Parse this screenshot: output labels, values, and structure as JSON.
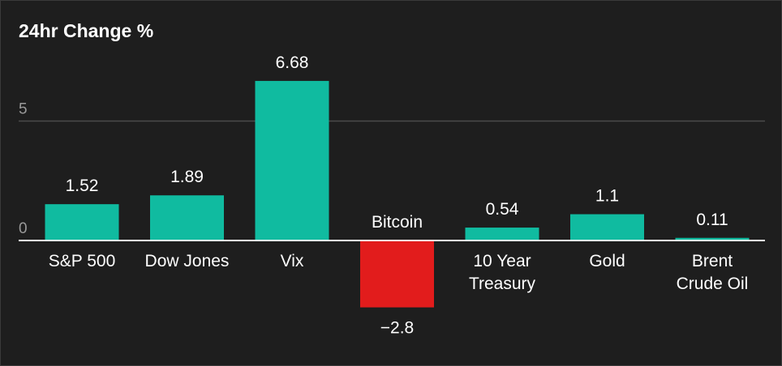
{
  "chart_data": {
    "type": "bar",
    "title": "24hr Change %",
    "xlabel": "",
    "ylabel": "",
    "categories": [
      [
        "S&P 500"
      ],
      [
        "Dow Jones"
      ],
      [
        "Vix"
      ],
      [
        "Bitcoin"
      ],
      [
        "10 Year",
        "Treasury"
      ],
      [
        "Gold"
      ],
      [
        "Brent",
        "Crude Oil"
      ]
    ],
    "values": [
      1.52,
      1.89,
      6.68,
      -2.8,
      0.54,
      1.1,
      0.11
    ],
    "value_labels": [
      "1.52",
      "1.89",
      "6.68",
      "−2.8",
      "0.54",
      "1.1",
      "0.11"
    ],
    "yticks": [
      0,
      5
    ],
    "ytick_labels": [
      "0",
      "5"
    ],
    "ylim": [
      -4,
      8
    ],
    "grid": true,
    "legend": "none",
    "colors": {
      "positive": "#10bba0",
      "negative": "#e21c1c",
      "grid": "#4a4a4a",
      "zero_line": "#ffffff"
    }
  }
}
